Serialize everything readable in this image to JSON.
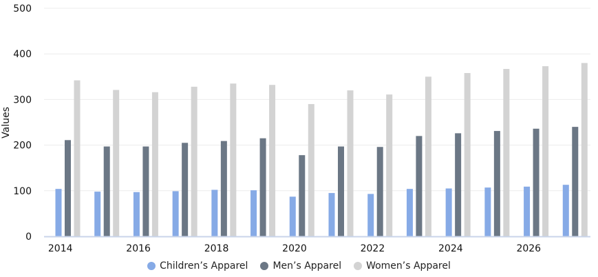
{
  "chart_data": {
    "type": "bar",
    "ylabel": "Values",
    "ylim": [
      0,
      500
    ],
    "yticks": [
      0,
      100,
      200,
      300,
      400,
      500
    ],
    "xticks": [
      "2014",
      "2016",
      "2018",
      "2020",
      "2022",
      "2024",
      "2026"
    ],
    "categories": [
      "2014",
      "2015",
      "2016",
      "2017",
      "2018",
      "2019",
      "2020",
      "2021",
      "2022",
      "2023",
      "2024",
      "2025",
      "2026",
      "2027"
    ],
    "grid": true,
    "legend_position": "bottom",
    "series": [
      {
        "name": "Children’s Apparel",
        "color": "#86aae6",
        "values": [
          104,
          98,
          97,
          99,
          102,
          101,
          87,
          95,
          93,
          104,
          105,
          107,
          109,
          113
        ]
      },
      {
        "name": "Men’s Apparel",
        "color": "#6b7785",
        "values": [
          211,
          197,
          197,
          205,
          209,
          215,
          178,
          197,
          196,
          220,
          226,
          231,
          236,
          240
        ]
      },
      {
        "name": "Women’s Apparel",
        "color": "#d3d3d3",
        "values": [
          342,
          321,
          316,
          328,
          335,
          332,
          290,
          320,
          311,
          350,
          358,
          367,
          373,
          380
        ]
      }
    ]
  }
}
